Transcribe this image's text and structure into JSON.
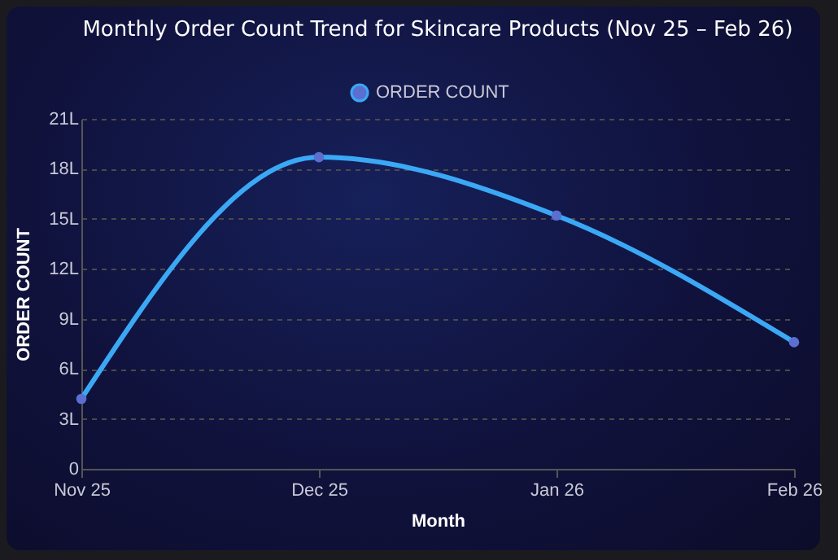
{
  "chart_data": {
    "type": "line",
    "title": "Monthly Order Count Trend for Skincare Products (Nov 25 – Feb 26)",
    "xlabel": "Month",
    "ylabel": "ORDER COUNT",
    "categories": [
      "Nov 25",
      "Dec 25",
      "Jan 26",
      "Feb 26"
    ],
    "series": [
      {
        "name": "ORDER COUNT",
        "color": "#3ba8f5",
        "values": [
          4.2,
          18.7,
          15.2,
          7.6
        ]
      }
    ],
    "ylim": [
      0,
      21
    ],
    "yticks": [
      0,
      {
        "value": 3,
        "label": "3L"
      },
      {
        "value": 6,
        "label": "6L"
      },
      {
        "value": 9,
        "label": "9L"
      },
      {
        "value": 12,
        "label": "12L"
      },
      {
        "value": 15,
        "label": "15L"
      },
      {
        "value": 18,
        "label": "18L"
      },
      {
        "value": 21,
        "label": "21L"
      }
    ],
    "grid": "y",
    "legend": "top",
    "marker": "circle",
    "line_style": "solid"
  }
}
